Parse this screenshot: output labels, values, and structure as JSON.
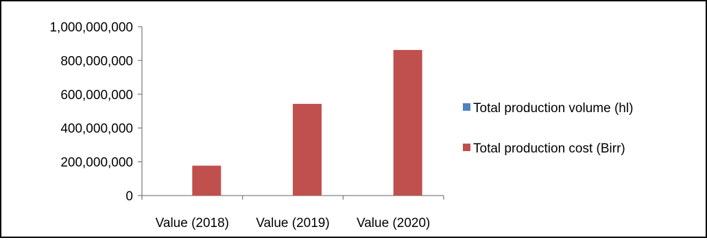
{
  "chart_data": {
    "type": "bar",
    "categories": [
      "Value (2018)",
      "Value (2019)",
      "Value (2020)"
    ],
    "series": [
      {
        "name": "Total production volume (hl)",
        "values": [
          0,
          0,
          0
        ],
        "color": "#4f81bd"
      },
      {
        "name": "Total production cost (Birr)",
        "values": [
          177000000,
          543000000,
          862000000
        ],
        "color": "#c0504d"
      }
    ],
    "ylim": [
      0,
      1000000000
    ],
    "yticks": [
      0,
      200000000,
      400000000,
      600000000,
      800000000,
      1000000000
    ],
    "ytick_labels": [
      "0",
      "200,000,000",
      "400,000,000",
      "600,000,000",
      "800,000,000",
      "1,000,000,000"
    ],
    "grid": false,
    "legend_position": "right"
  }
}
